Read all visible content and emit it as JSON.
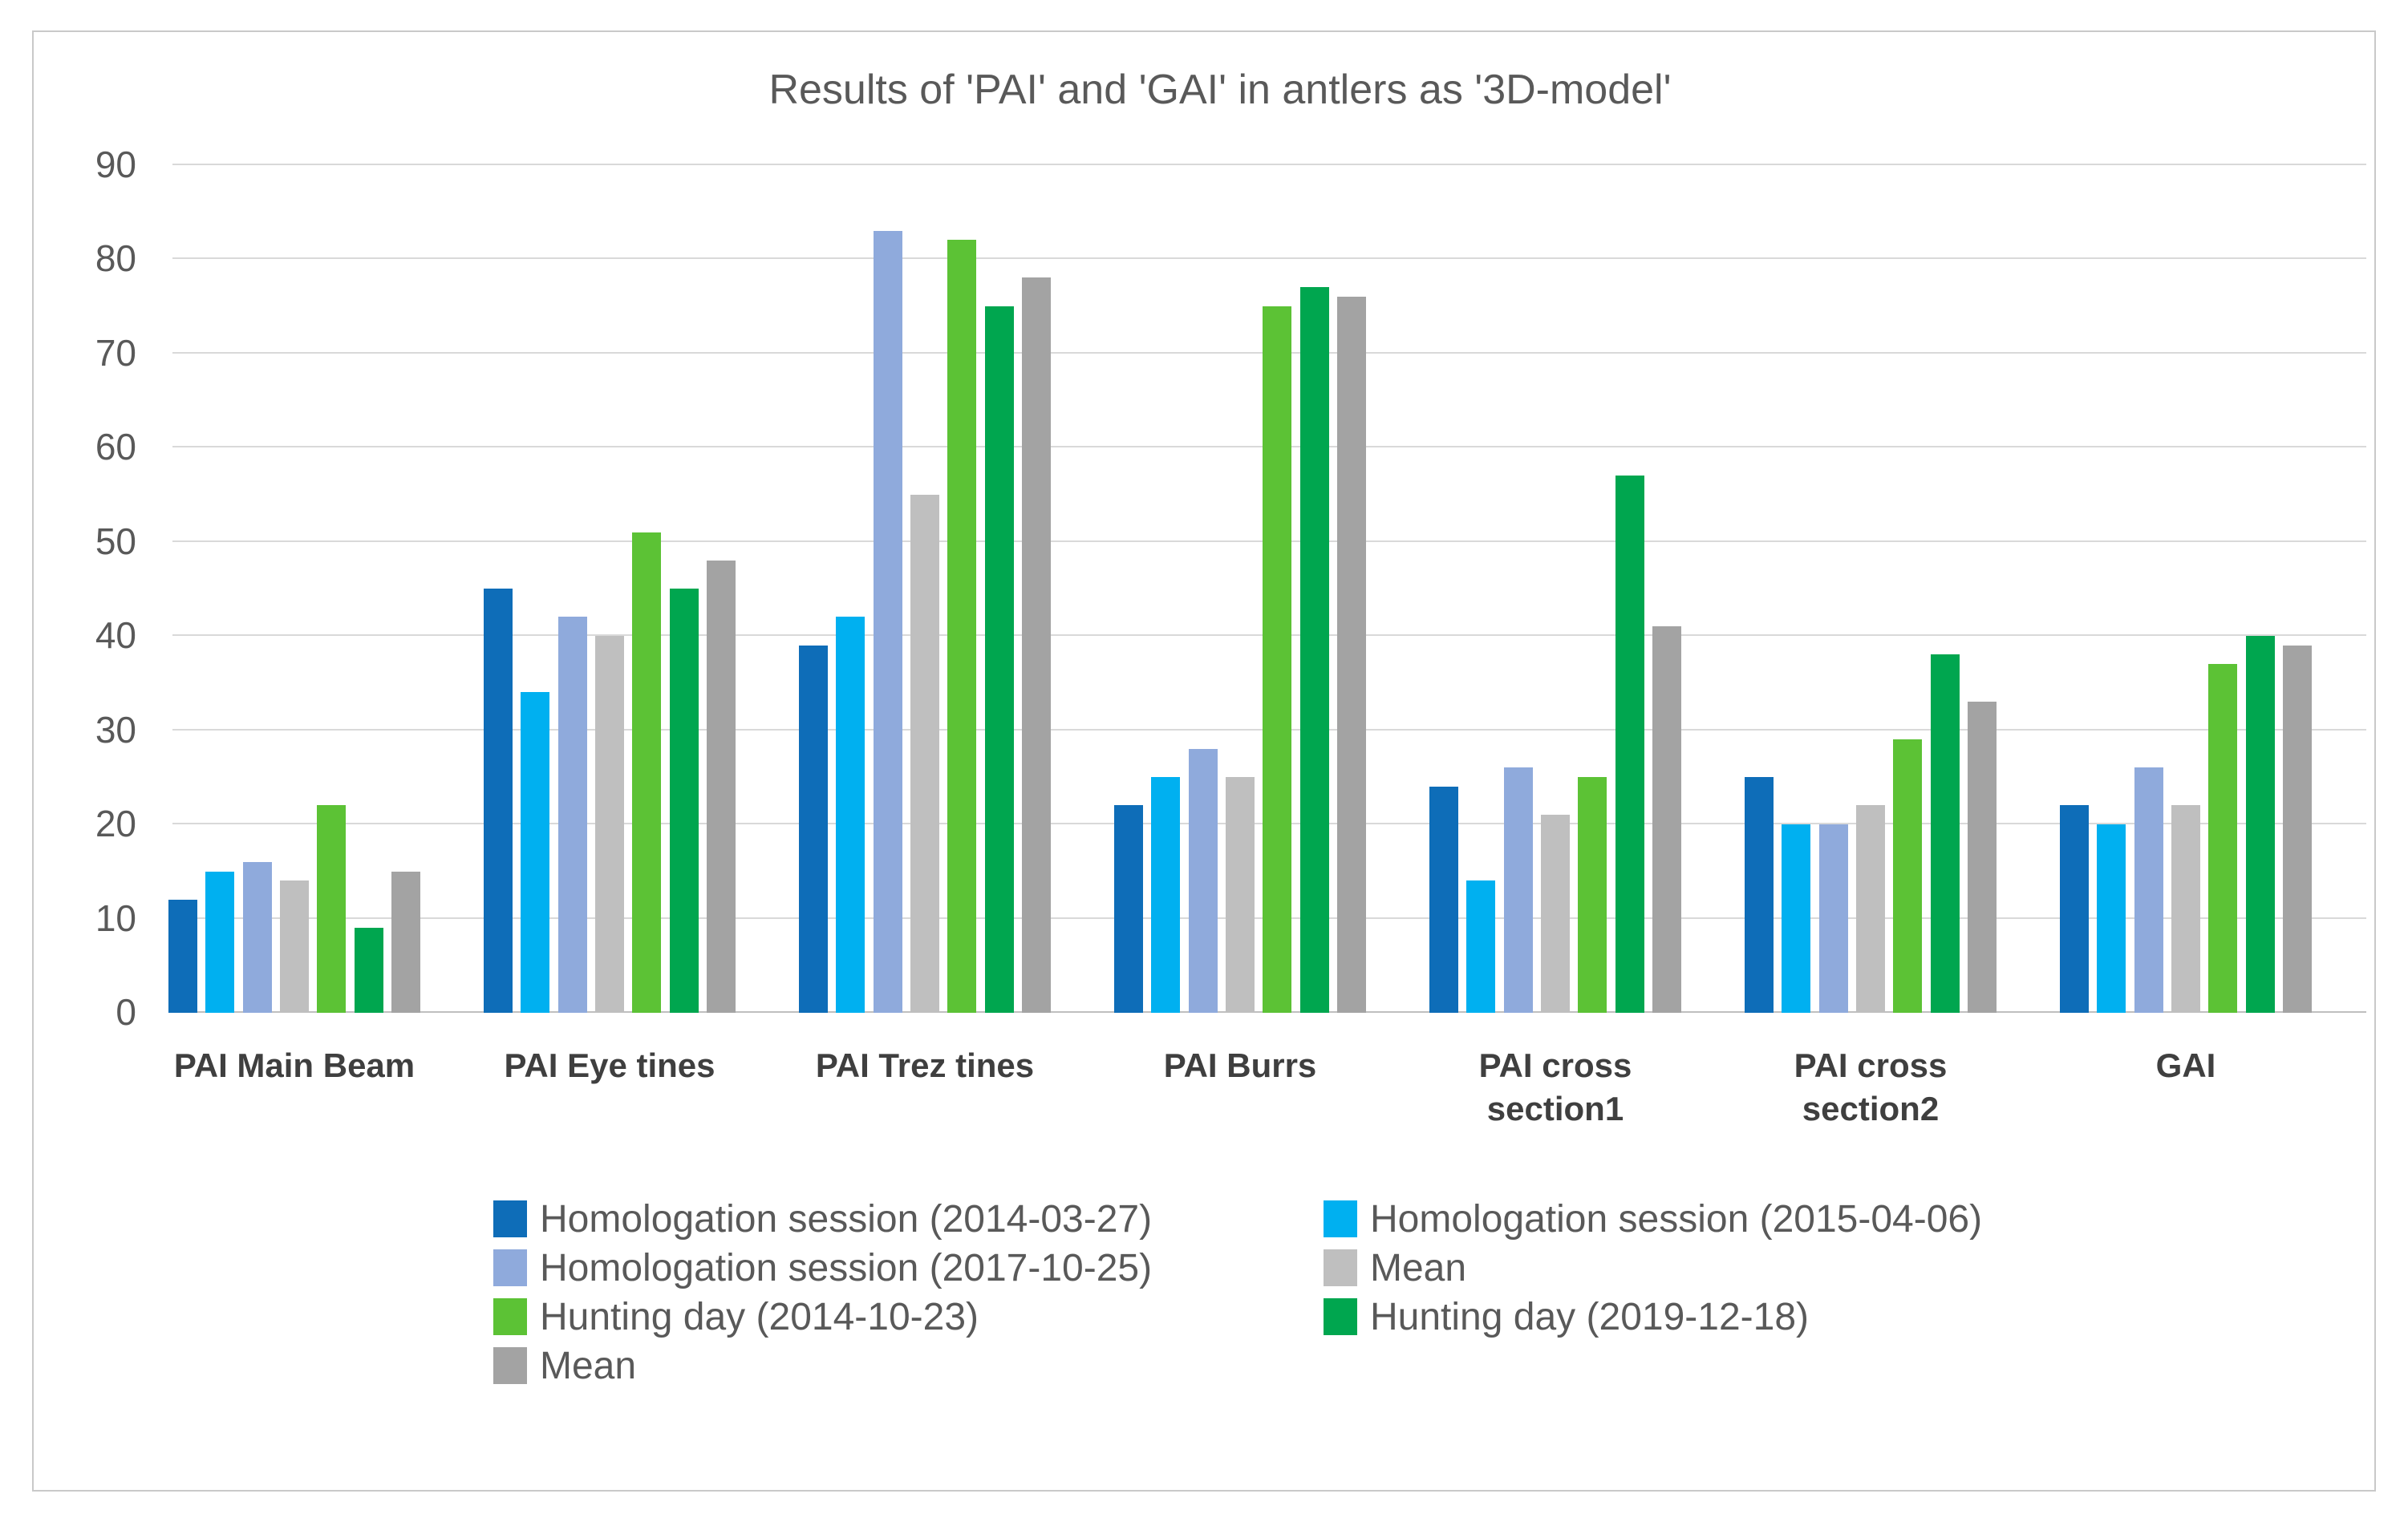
{
  "chart_data": {
    "type": "bar",
    "title": "Results of 'PAI' and 'GAI' in antlers as '3D-model'",
    "categories": [
      "PAI Main Beam",
      "PAI Eye tines",
      "PAI Trez tines",
      "PAI Burrs",
      "PAI cross section1",
      "PAI cross section2",
      "GAI"
    ],
    "series": [
      {
        "name": "Homologation session (2014-03-27)",
        "color": "#0E6DB8",
        "values": [
          12,
          45,
          39,
          22,
          24,
          25,
          22
        ]
      },
      {
        "name": "Homologation session (2015-04-06)",
        "color": "#00B0F0",
        "values": [
          15,
          34,
          42,
          25,
          14,
          20,
          20
        ]
      },
      {
        "name": "Homologation session (2017-10-25)",
        "color": "#8FAADC",
        "values": [
          16,
          42,
          83,
          28,
          26,
          20,
          26
        ]
      },
      {
        "name": "Mean",
        "color": "#BFBFBF",
        "values": [
          14,
          40,
          55,
          25,
          21,
          22,
          22
        ]
      },
      {
        "name": "Hunting day (2014-10-23)",
        "color": "#5CC235",
        "values": [
          22,
          51,
          82,
          75,
          25,
          29,
          37
        ]
      },
      {
        "name": "Hunting day (2019-12-18)",
        "color": "#00A64F",
        "values": [
          9,
          45,
          75,
          77,
          57,
          38,
          40
        ]
      },
      {
        "name": "Mean",
        "color": "#A3A3A3",
        "values": [
          15,
          48,
          78,
          76,
          41,
          33,
          39
        ]
      }
    ],
    "xlabel": "",
    "ylabel": "",
    "ylim": [
      0,
      90
    ],
    "yticks": [
      0,
      10,
      20,
      30,
      40,
      50,
      60,
      70,
      80,
      90
    ],
    "grid": true,
    "legend_position": "bottom",
    "legend_columns": 2
  },
  "colors": {
    "background": "#ffffff",
    "frame_border": "#c9c9c9",
    "gridline": "#d9d9d9",
    "axis_line": "#bfbfbf",
    "title_text": "#595959",
    "tick_text": "#595959",
    "category_text": "#3f3f3f",
    "legend_text": "#595959"
  }
}
